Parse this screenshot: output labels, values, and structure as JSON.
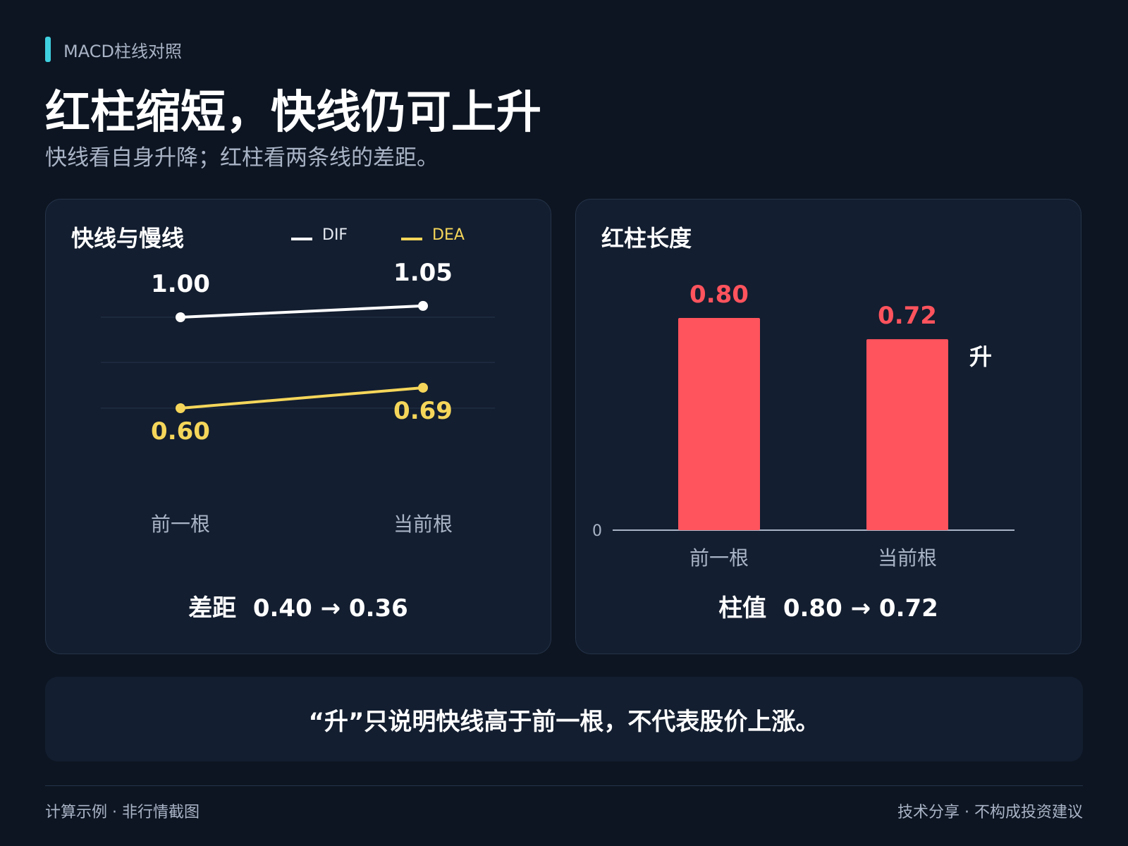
{
  "header": {
    "tag": "MACD柱线对照",
    "title": "红柱缩短，快线仍可上升",
    "subtitle": "快线看自身升降；红柱看两条线的差距。"
  },
  "left_panel": {
    "title": "快线与慢线",
    "summary": "差距  0.40 → 0.36"
  },
  "right_panel": {
    "title": "红柱长度",
    "summary": "柱值  0.80 → 0.72",
    "side_label": "升"
  },
  "note": "“升”只说明快线高于前一根，不代表股价上涨。",
  "footer": {
    "left": "计算示例 · 非行情截图",
    "right": "技术分享 · 不构成投资建议"
  },
  "colors": {
    "background": "#0d1522",
    "panel": "#131e30",
    "dif": "#ffffff",
    "dea": "#f5d65a",
    "bar": "#ff535d",
    "accent": "#3fd0e0"
  },
  "chart_data": [
    {
      "type": "line",
      "categories": [
        "前一根",
        "当前根"
      ],
      "series": [
        {
          "name": "DIF",
          "values": [
            1.0,
            1.05
          ],
          "labels": [
            "1.00",
            "1.05"
          ]
        },
        {
          "name": "DEA",
          "values": [
            0.6,
            0.69
          ],
          "labels": [
            "0.60",
            "0.69"
          ]
        }
      ],
      "legend": "top-right",
      "grid": true
    },
    {
      "type": "bar",
      "categories": [
        "前一根",
        "当前根"
      ],
      "values": [
        0.8,
        0.72
      ],
      "labels": [
        "0.80",
        "0.72"
      ],
      "ylim": [
        0,
        0.8
      ],
      "zero_label": "0"
    }
  ]
}
